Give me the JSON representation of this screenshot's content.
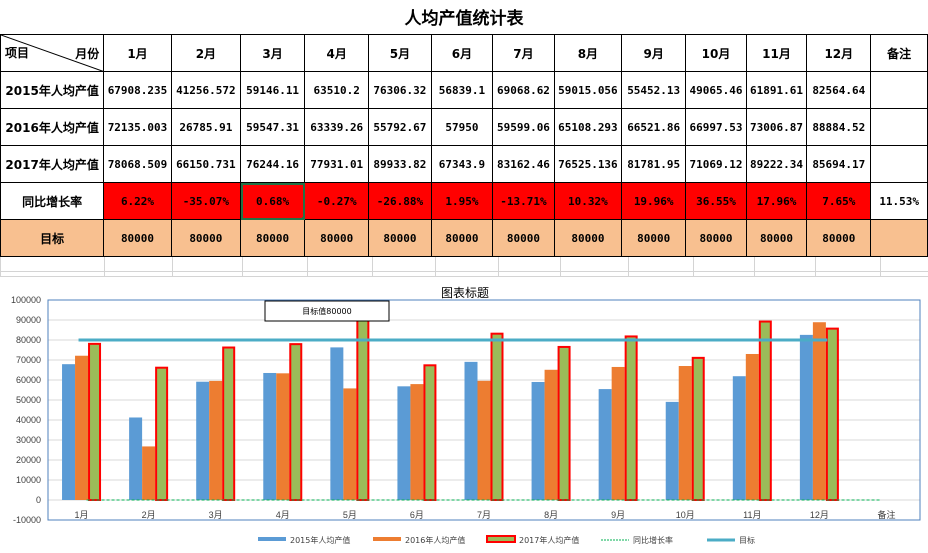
{
  "sheet": {
    "title": "人均产值统计表",
    "corner": {
      "left": "项目",
      "right": "月份"
    },
    "headers": [
      "1月",
      "2月",
      "3月",
      "4月",
      "5月",
      "6月",
      "7月",
      "8月",
      "9月",
      "10月",
      "11月",
      "12月",
      "备注"
    ],
    "rows": [
      {
        "label": "2015年人均产值",
        "values": [
          "67908.235",
          "41256.572",
          "59146.11",
          "63510.2",
          "76306.32",
          "56839.1",
          "69068.62",
          "59015.056",
          "55452.13",
          "49065.46",
          "61891.61",
          "82564.64",
          ""
        ]
      },
      {
        "label": "2016年人均产值",
        "values": [
          "72135.003",
          "26785.91",
          "59547.31",
          "63339.26",
          "55792.67",
          "57950",
          "59599.06",
          "65108.293",
          "66521.86",
          "66997.53",
          "73006.87",
          "88884.52",
          ""
        ]
      },
      {
        "label": "2017年人均产值",
        "values": [
          "78068.509",
          "66150.731",
          "76244.16",
          "77931.01",
          "89933.82",
          "67343.9",
          "83162.46",
          "76525.136",
          "81781.95",
          "71069.12",
          "89222.34",
          "85694.17",
          ""
        ]
      },
      {
        "label": "同比增长率",
        "values": [
          "6.22%",
          "-35.07%",
          "0.68%",
          "-0.27%",
          "-26.88%",
          "1.95%",
          "-13.71%",
          "10.32%",
          "19.96%",
          "36.55%",
          "17.96%",
          "7.65%",
          "11.53%"
        ]
      },
      {
        "label": "目标",
        "values": [
          "80000",
          "80000",
          "80000",
          "80000",
          "80000",
          "80000",
          "80000",
          "80000",
          "80000",
          "80000",
          "80000",
          "80000",
          ""
        ]
      }
    ],
    "selected_cell": "3月 同比增长率",
    "colors": {
      "growth_fill": "#ff0000",
      "target_fill": "#f8c090",
      "selection": "#217346"
    }
  },
  "chart_data": {
    "type": "bar",
    "title": "图表标题",
    "annotation": "目标值80000",
    "categories": [
      "1月",
      "2月",
      "3月",
      "4月",
      "5月",
      "6月",
      "7月",
      "8月",
      "9月",
      "10月",
      "11月",
      "12月",
      "备注"
    ],
    "series": [
      {
        "name": "2015年人均产值",
        "type": "bar",
        "color": "#5b9bd5",
        "values": [
          67908.235,
          41256.572,
          59146.11,
          63510.2,
          76306.32,
          56839.1,
          69068.62,
          59015.056,
          55452.13,
          49065.46,
          61891.61,
          82564.64,
          null
        ]
      },
      {
        "name": "2016年人均产值",
        "type": "bar",
        "color": "#ed7d31",
        "values": [
          72135.003,
          26785.91,
          59547.31,
          63339.26,
          55792.67,
          57950,
          59599.06,
          65108.293,
          66521.86,
          66997.53,
          73006.87,
          88884.52,
          null
        ]
      },
      {
        "name": "2017年人均产值",
        "type": "bar",
        "color": "#9bbb59",
        "border": "#ff0000",
        "values": [
          78068.509,
          66150.731,
          76244.16,
          77931.01,
          89933.82,
          67343.9,
          83162.46,
          76525.136,
          81781.95,
          71069.12,
          89222.34,
          85694.17,
          null
        ]
      },
      {
        "name": "同比增长率",
        "type": "line",
        "style": "dashed",
        "color": "#00b050",
        "values": [
          0.0622,
          -0.3507,
          0.0068,
          -0.0027,
          -0.2688,
          0.0195,
          -0.1371,
          0.1032,
          0.1996,
          0.3655,
          0.1796,
          0.0765,
          0.1153
        ]
      },
      {
        "name": "目标",
        "type": "line",
        "color": "#4bacc6",
        "values": [
          80000,
          80000,
          80000,
          80000,
          80000,
          80000,
          80000,
          80000,
          80000,
          80000,
          80000,
          80000,
          null
        ]
      }
    ],
    "yticks": [
      "100000",
      "90000",
      "80000",
      "70000",
      "60000",
      "50000",
      "40000",
      "30000",
      "20000",
      "10000",
      "0",
      "-10000"
    ],
    "ylim": [
      -10000,
      100000
    ],
    "grid": true,
    "legend_position": "bottom",
    "xlabel": "",
    "ylabel": ""
  }
}
